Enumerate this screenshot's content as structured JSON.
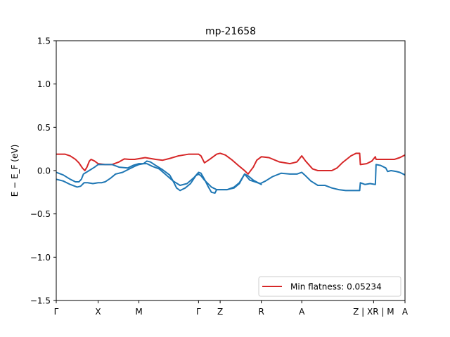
{
  "chart_data": {
    "type": "line",
    "title": "mp-21658",
    "ylabel": "E − E_F (eV)",
    "ylim": [
      -1.5,
      1.5
    ],
    "yticks": [
      -1.5,
      -1.0,
      -0.5,
      0.0,
      0.5,
      1.0,
      1.5
    ],
    "ytick_labels": [
      "−1.5",
      "−1.0",
      "−0.5",
      "0.0",
      "0.5",
      "1.0",
      "1.5"
    ],
    "xlim": [
      0,
      100
    ],
    "kpath": [
      {
        "label": "Γ",
        "x": 0
      },
      {
        "label": "X",
        "x": 12
      },
      {
        "label": "M",
        "x": 23.7
      },
      {
        "label": "Γ",
        "x": 40.8
      },
      {
        "label": "Z",
        "x": 47
      },
      {
        "label": "R",
        "x": 58.8
      },
      {
        "label": "A",
        "x": 70.4
      },
      {
        "label": "Z | XR | M",
        "x": 91
      },
      {
        "label": "A",
        "x": 100
      }
    ],
    "legend": {
      "position": "lower-right",
      "entries": [
        "Min flatness: 0.05234"
      ]
    },
    "series": [
      {
        "name": "Min flatness: 0.05234",
        "color": "#d62728",
        "points": [
          [
            0,
            0.19
          ],
          [
            2.5,
            0.19
          ],
          [
            4,
            0.17
          ],
          [
            5.5,
            0.13
          ],
          [
            6.5,
            0.09
          ],
          [
            7.5,
            0.03
          ],
          [
            8.2,
            0.0
          ],
          [
            8.8,
            0.04
          ],
          [
            9.5,
            0.11
          ],
          [
            10,
            0.13
          ],
          [
            11,
            0.11
          ],
          [
            12,
            0.08
          ],
          [
            14,
            0.07
          ],
          [
            16,
            0.07
          ],
          [
            18,
            0.1
          ],
          [
            19.5,
            0.135
          ],
          [
            21,
            0.13
          ],
          [
            22.5,
            0.13
          ],
          [
            24,
            0.14
          ],
          [
            25.5,
            0.15
          ],
          [
            27,
            0.14
          ],
          [
            28.5,
            0.13
          ],
          [
            30.5,
            0.12
          ],
          [
            32.5,
            0.14
          ],
          [
            35,
            0.17
          ],
          [
            38,
            0.19
          ],
          [
            40.8,
            0.19
          ],
          [
            41.5,
            0.17
          ],
          [
            42.5,
            0.09
          ],
          [
            44,
            0.13
          ],
          [
            46,
            0.19
          ],
          [
            47,
            0.2
          ],
          [
            48.5,
            0.18
          ],
          [
            50.5,
            0.12
          ],
          [
            52.5,
            0.05
          ],
          [
            54,
            0.0
          ],
          [
            55,
            -0.04
          ],
          [
            56.5,
            0.04
          ],
          [
            57.5,
            0.12
          ],
          [
            58.8,
            0.16
          ],
          [
            61,
            0.15
          ],
          [
            64,
            0.1
          ],
          [
            67,
            0.08
          ],
          [
            69,
            0.1
          ],
          [
            70.4,
            0.17
          ],
          [
            71.5,
            0.11
          ],
          [
            73.5,
            0.02
          ],
          [
            75,
            0.0
          ],
          [
            77,
            0.0
          ],
          [
            79,
            0.0
          ],
          [
            80.5,
            0.03
          ],
          [
            82,
            0.09
          ],
          [
            84.5,
            0.17
          ],
          [
            86,
            0.2
          ],
          [
            87,
            0.2
          ],
          [
            87.2,
            0.07
          ],
          [
            89,
            0.08
          ],
          [
            90.5,
            0.11
          ],
          [
            91.5,
            0.16
          ],
          [
            91.7,
            0.13
          ],
          [
            95,
            0.13
          ],
          [
            97,
            0.13
          ],
          [
            98.5,
            0.15
          ],
          [
            100,
            0.18
          ]
        ]
      },
      {
        "name": "",
        "color": "#1f77b4",
        "points": [
          [
            0,
            -0.02
          ],
          [
            2,
            -0.05
          ],
          [
            4,
            -0.1
          ],
          [
            5.5,
            -0.13
          ],
          [
            6.5,
            -0.13
          ],
          [
            7.2,
            -0.1
          ],
          [
            7.8,
            -0.04
          ],
          [
            9,
            -0.01
          ],
          [
            11,
            0.04
          ],
          [
            12,
            0.07
          ],
          [
            14,
            0.07
          ],
          [
            16,
            0.07
          ],
          [
            18,
            0.04
          ],
          [
            20.5,
            0.03
          ],
          [
            22,
            0.06
          ],
          [
            23.7,
            0.08
          ],
          [
            26,
            0.08
          ],
          [
            27.5,
            0.05
          ],
          [
            29.5,
            0.02
          ],
          [
            31.5,
            -0.05
          ],
          [
            33.5,
            -0.12
          ],
          [
            35.5,
            -0.17
          ],
          [
            37.5,
            -0.15
          ],
          [
            39.5,
            -0.08
          ],
          [
            40.8,
            -0.02
          ],
          [
            41.5,
            -0.03
          ],
          [
            42.5,
            -0.1
          ],
          [
            43.5,
            -0.18
          ],
          [
            44.5,
            -0.25
          ],
          [
            45.5,
            -0.26
          ],
          [
            46,
            -0.22
          ],
          [
            47,
            -0.22
          ],
          [
            49,
            -0.22
          ],
          [
            51,
            -0.2
          ],
          [
            52.5,
            -0.15
          ],
          [
            54,
            -0.04
          ],
          [
            55.5,
            -0.11
          ],
          [
            57,
            -0.13
          ],
          [
            58.5,
            -0.15
          ],
          [
            60,
            -0.12
          ],
          [
            62,
            -0.07
          ],
          [
            64.5,
            -0.03
          ],
          [
            67,
            -0.04
          ],
          [
            69,
            -0.04
          ],
          [
            70.4,
            -0.02
          ],
          [
            71.5,
            -0.06
          ],
          [
            73,
            -0.12
          ],
          [
            75,
            -0.17
          ],
          [
            77,
            -0.17
          ],
          [
            79,
            -0.2
          ],
          [
            81,
            -0.22
          ],
          [
            83,
            -0.23
          ],
          [
            86,
            -0.23
          ],
          [
            87,
            -0.23
          ],
          [
            87.2,
            -0.14
          ],
          [
            88.5,
            -0.16
          ],
          [
            90,
            -0.15
          ],
          [
            91.5,
            -0.16
          ],
          [
            91.7,
            0.07
          ],
          [
            93,
            0.06
          ],
          [
            94.5,
            0.03
          ],
          [
            95,
            -0.01
          ],
          [
            96,
            0.0
          ],
          [
            97.5,
            -0.01
          ],
          [
            98.5,
            -0.02
          ],
          [
            100,
            -0.05
          ]
        ]
      },
      {
        "name": "",
        "color": "#1f77b4",
        "points": [
          [
            0,
            -0.1
          ],
          [
            2,
            -0.12
          ],
          [
            4,
            -0.16
          ],
          [
            6,
            -0.19
          ],
          [
            7,
            -0.18
          ],
          [
            8,
            -0.14
          ],
          [
            9,
            -0.14
          ],
          [
            10.5,
            -0.15
          ],
          [
            12,
            -0.14
          ],
          [
            13,
            -0.14
          ],
          [
            14,
            -0.13
          ],
          [
            15.5,
            -0.09
          ],
          [
            17,
            -0.04
          ],
          [
            19,
            -0.02
          ],
          [
            21,
            0.02
          ],
          [
            22.5,
            0.05
          ],
          [
            23.7,
            0.07
          ],
          [
            25,
            0.08
          ],
          [
            26,
            0.11
          ],
          [
            27,
            0.1
          ],
          [
            28.5,
            0.06
          ],
          [
            30.5,
            0.01
          ],
          [
            32.5,
            -0.05
          ],
          [
            33.5,
            -0.12
          ],
          [
            34.5,
            -0.2
          ],
          [
            35.5,
            -0.23
          ],
          [
            37,
            -0.2
          ],
          [
            38.5,
            -0.15
          ],
          [
            40,
            -0.06
          ],
          [
            40.8,
            -0.04
          ],
          [
            41.5,
            -0.06
          ],
          [
            42.5,
            -0.11
          ],
          [
            44.5,
            -0.19
          ],
          [
            46,
            -0.22
          ],
          [
            47,
            -0.22
          ],
          [
            49,
            -0.22
          ],
          [
            51,
            -0.19
          ],
          [
            52.5,
            -0.14
          ],
          [
            54,
            -0.04
          ],
          [
            55,
            -0.06
          ],
          [
            56.5,
            -0.11
          ],
          [
            58.8,
            -0.16
          ]
        ]
      }
    ]
  }
}
